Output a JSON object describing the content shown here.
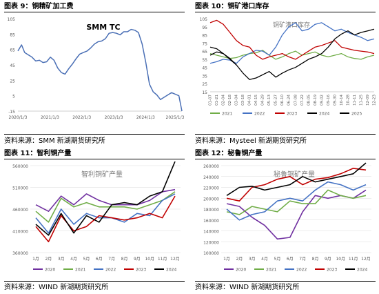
{
  "panels": [
    {
      "title": "图表 9：铜精矿加工费",
      "source": "资料来源：SMM 新湖期货研究所"
    },
    {
      "title": "图表 10：铜矿港口库存",
      "source": "资料来源：Mysteel 新湖期货研究所"
    },
    {
      "title": "图表 11：智利铜产量",
      "source": "资料来源：WIND 新湖期货研究所"
    },
    {
      "title": "图表 12：秘鲁铜产量",
      "source": "资料来源：WIND 新湖期货研究所"
    }
  ],
  "colors": {
    "c2020": "#7030a0",
    "c2021": "#70ad47",
    "c2022": "#4472c4",
    "c2023": "#c00000",
    "c2024": "#000000",
    "c2025": "#000000",
    "tc": "#4a6fb5",
    "grid": "#d9d9d9"
  },
  "chart_data": [
    {
      "type": "line",
      "title": "SMM TC",
      "x_ticks": [
        "2020/1/3",
        "2021/1/3",
        "2022/1/3",
        "2023/1/3",
        "2024/1/3",
        "2025/1/3"
      ],
      "y_ticks": [
        -15,
        5,
        25,
        45,
        65,
        85,
        105
      ],
      "ylim": [
        -15,
        105
      ],
      "x": [
        "2020/1/3",
        "2020/2/14",
        "2020/3/20",
        "2020/5/1",
        "2020/6/12",
        "2020/7/24",
        "2020/9/4",
        "2020/10/16",
        "2020/11/27",
        "2021/1/8",
        "2021/2/19",
        "2021/4/2",
        "2021/5/14",
        "2021/6/25",
        "2021/8/6",
        "2021/9/17",
        "2021/10/29",
        "2021/12/10",
        "2022/1/21",
        "2022/3/4",
        "2022/4/15",
        "2022/5/27",
        "2022/7/8",
        "2022/8/19",
        "2022/9/30",
        "2022/11/11",
        "2022/12/23",
        "2023/2/3",
        "2023/3/17",
        "2023/4/28",
        "2023/6/9",
        "2023/7/21",
        "2023/9/1",
        "2023/10/13",
        "2023/11/24",
        "2024/1/5",
        "2024/2/16",
        "2024/3/29",
        "2024/5/10",
        "2024/6/21",
        "2024/8/2",
        "2024/9/13",
        "2024/10/25",
        "2024/12/6",
        "2025/1/17",
        "2025/2/21"
      ],
      "values": [
        63,
        71,
        61,
        58,
        55,
        50,
        51,
        48,
        49,
        55,
        51,
        41,
        35,
        33,
        40,
        46,
        53,
        59,
        61,
        63,
        67,
        72,
        75,
        76,
        79,
        86,
        87,
        86,
        84,
        88,
        88,
        91,
        90,
        87,
        72,
        48,
        20,
        10,
        6,
        0,
        3,
        6,
        9,
        7,
        5,
        -15
      ]
    },
    {
      "type": "line",
      "title": "铜矿港口库存",
      "x_ticks": [
        "01-07",
        "01-21",
        "02-04",
        "02-18",
        "03-04",
        "03-18",
        "04-01",
        "04-15",
        "04-29",
        "05-13",
        "05-27",
        "06-10",
        "06-24",
        "07-08",
        "07-22",
        "08-05",
        "08-19",
        "09-02",
        "09-16",
        "09-30",
        "10-14",
        "10-28",
        "11-11",
        "11-25",
        "12-09",
        "12-23"
      ],
      "y_ticks": [
        15,
        25,
        35,
        45,
        55,
        65,
        75,
        85,
        95,
        105
      ],
      "ylim": [
        15,
        105
      ],
      "series": [
        {
          "name": "2021",
          "values": [
            62,
            60,
            58,
            56,
            57,
            60,
            62,
            63,
            66,
            60,
            55,
            58,
            62,
            65,
            60,
            62,
            64,
            60,
            58,
            60,
            62,
            58,
            56,
            55,
            58,
            60
          ]
        },
        {
          "name": "2022",
          "values": [
            50,
            52,
            55,
            54,
            50,
            58,
            62,
            66,
            65,
            60,
            70,
            85,
            95,
            100,
            90,
            92,
            98,
            100,
            95,
            90,
            92,
            88,
            85,
            82,
            78,
            80
          ]
        },
        {
          "name": "2023",
          "values": [
            100,
            103,
            98,
            88,
            78,
            72,
            70,
            60,
            55,
            58,
            60,
            62,
            58,
            55,
            60,
            65,
            70,
            72,
            75,
            78,
            70,
            68,
            66,
            65,
            64,
            62
          ]
        },
        {
          "name": "2024",
          "values": [
            60,
            64,
            62,
            56,
            48,
            38,
            30,
            32,
            36,
            40,
            33,
            38,
            42,
            45,
            50,
            55,
            58,
            62,
            70,
            80,
            86,
            90,
            85,
            88,
            90,
            92
          ]
        },
        {
          "name": "2025",
          "values": [
            70,
            68,
            62,
            55,
            48
          ]
        }
      ]
    },
    {
      "type": "line",
      "title": "智利铜矿产量",
      "categories": [
        "1月",
        "2月",
        "3月",
        "4月",
        "5月",
        "6月",
        "7月",
        "8月",
        "9月",
        "10月",
        "11月",
        "12月"
      ],
      "y_ticks": [
        360000,
        410000,
        460000,
        510000,
        560000
      ],
      "ylim": [
        360000,
        560000
      ],
      "series": [
        {
          "name": "2020",
          "values": [
            470000,
            455000,
            490000,
            470000,
            495000,
            480000,
            470000,
            470000,
            470000,
            480000,
            500000,
            505000
          ]
        },
        {
          "name": "2021",
          "values": [
            455000,
            430000,
            485000,
            465000,
            475000,
            465000,
            465000,
            465000,
            460000,
            470000,
            480000,
            500000
          ]
        },
        {
          "name": "2022",
          "values": [
            440000,
            405000,
            460000,
            425000,
            450000,
            440000,
            440000,
            430000,
            450000,
            445000,
            480000,
            495000
          ]
        },
        {
          "name": "2023",
          "values": [
            420000,
            385000,
            445000,
            410000,
            420000,
            445000,
            440000,
            435000,
            440000,
            450000,
            440000,
            490000
          ]
        },
        {
          "name": "2024",
          "values": [
            425000,
            400000,
            450000,
            405000,
            445000,
            430000,
            470000,
            475000,
            470000,
            490000,
            500000,
            570000
          ]
        }
      ]
    },
    {
      "type": "line",
      "title": "秘鲁铜矿产量",
      "categories": [
        "1月",
        "2月",
        "3月",
        "4月",
        "5月",
        "6月",
        "7月",
        "8月",
        "9月",
        "10月",
        "11月",
        "12月"
      ],
      "y_ticks": [
        100000,
        120000,
        140000,
        160000,
        180000,
        200000,
        220000,
        240000,
        260000
      ],
      "ylim": [
        100000,
        260000
      ],
      "series": [
        {
          "name": "2020",
          "values": [
            190000,
            185000,
            165000,
            150000,
            125000,
            128000,
            175000,
            205000,
            200000,
            205000,
            200000,
            215000
          ]
        },
        {
          "name": "2021",
          "values": [
            175000,
            170000,
            185000,
            180000,
            175000,
            195000,
            190000,
            190000,
            215000,
            205000,
            200000,
            205000
          ]
        },
        {
          "name": "2022",
          "values": [
            180000,
            160000,
            170000,
            175000,
            195000,
            200000,
            195000,
            215000,
            230000,
            225000,
            215000,
            225000
          ]
        },
        {
          "name": "2023",
          "values": [
            200000,
            195000,
            220000,
            225000,
            235000,
            240000,
            225000,
            235000,
            238000,
            245000,
            255000,
            252000
          ]
        },
        {
          "name": "2024",
          "values": [
            205000,
            220000,
            222000,
            215000,
            220000,
            225000,
            240000,
            230000,
            235000,
            240000,
            245000,
            265000
          ]
        }
      ]
    }
  ]
}
